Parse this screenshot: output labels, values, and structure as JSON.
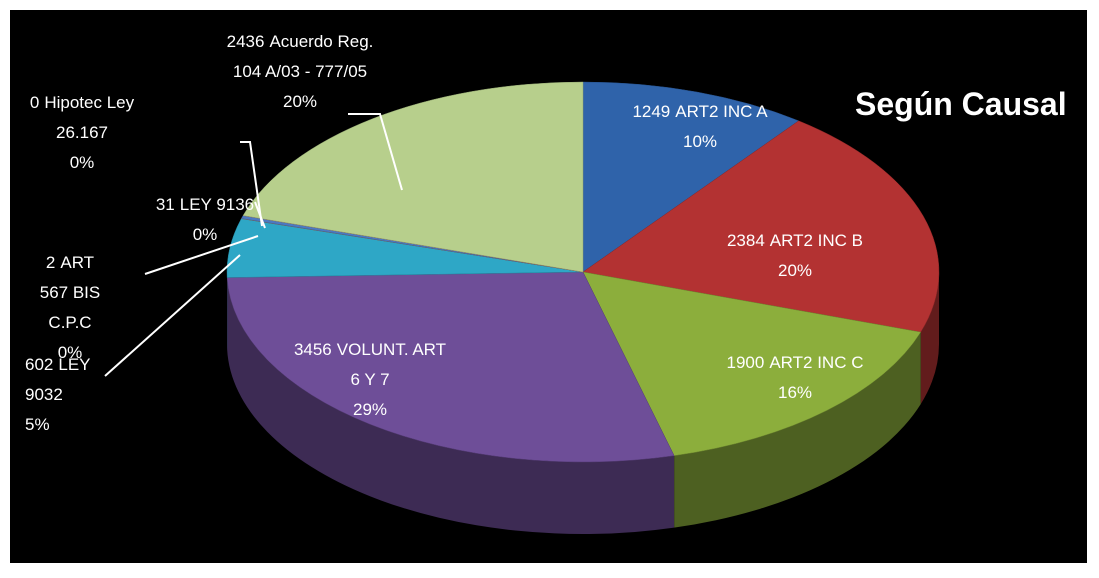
{
  "chart_data": {
    "type": "pie",
    "title": "Según Causal",
    "categories": [
      [
        "ART2 INC A"
      ],
      [
        "ART2  INC B"
      ],
      [
        "ART2 INC C"
      ],
      [
        "VOLUNT. ART",
        "6 Y 7"
      ],
      [
        "LEY",
        "9032"
      ],
      [
        "ART",
        "567 BIS",
        "C.P.C"
      ],
      [
        "LEY 9136"
      ],
      [
        "Hipotec Ley",
        "26.167"
      ],
      [
        "Acuerdo Reg.",
        "104 A/03 - 777/05"
      ]
    ],
    "values": [
      1249,
      2384,
      1900,
      3456,
      602,
      2,
      31,
      0,
      2436
    ],
    "percent_labels": [
      "10%",
      "20%",
      "16%",
      "29%",
      "5%",
      "0%",
      "0%",
      "0%",
      "20%"
    ],
    "colors": [
      "#2f63aa",
      "#b33232",
      "#8cae3c",
      "#6e4e98",
      "#2ea7c6",
      "#d9822b",
      "#4d79c0",
      "#c04040",
      "#b7cf8c"
    ]
  }
}
